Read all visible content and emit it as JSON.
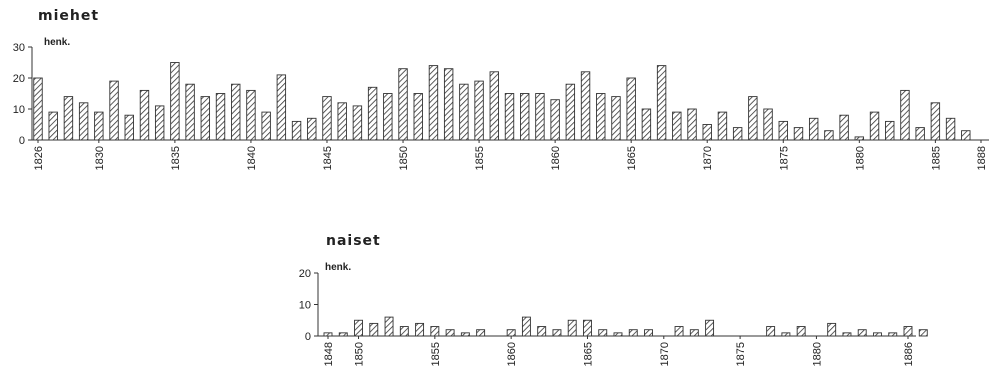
{
  "chart_data": [
    {
      "type": "bar",
      "title": "miehet",
      "ylabel": "henk.",
      "ylim": [
        0,
        30
      ],
      "yticks": [
        0,
        10,
        20,
        30
      ],
      "x_range": [
        1826,
        1888
      ],
      "x_ticks": [
        "1826",
        "1830",
        "1835",
        "1840",
        "1845",
        "1850",
        "1855",
        "1860",
        "1865",
        "1870",
        "1875",
        "1880",
        "1885",
        "1888"
      ],
      "bar_fill": "hatched",
      "values": [
        20,
        9,
        14,
        12,
        9,
        19,
        8,
        16,
        11,
        25,
        18,
        14,
        15,
        18,
        16,
        9,
        21,
        6,
        7,
        14,
        12,
        11,
        17,
        15,
        23,
        15,
        24,
        23,
        18,
        19,
        22,
        15,
        15,
        15,
        13,
        18,
        22,
        15,
        14,
        20,
        10,
        24,
        9,
        10,
        5,
        9,
        4,
        14,
        10,
        6,
        4,
        7,
        3,
        8,
        1,
        9,
        6,
        16,
        4,
        12,
        7,
        3
      ]
    },
    {
      "type": "bar",
      "title": "naiset",
      "ylabel": "henk.",
      "ylim": [
        0,
        20
      ],
      "yticks": [
        0,
        10,
        20
      ],
      "x_range": [
        1848,
        1886
      ],
      "x_ticks": [
        "1848",
        "1850",
        "1855",
        "1860",
        "1865",
        "1870",
        "1875",
        "1880",
        "1886"
      ],
      "bar_fill": "hatched",
      "values": [
        1,
        1,
        5,
        4,
        6,
        3,
        4,
        3,
        2,
        1,
        2,
        0,
        2,
        6,
        3,
        2,
        5,
        5,
        2,
        1,
        2,
        2,
        0,
        3,
        2,
        5,
        0,
        0,
        0,
        3,
        1,
        3,
        0,
        4,
        1,
        2,
        1,
        1,
        3,
        2
      ]
    }
  ]
}
